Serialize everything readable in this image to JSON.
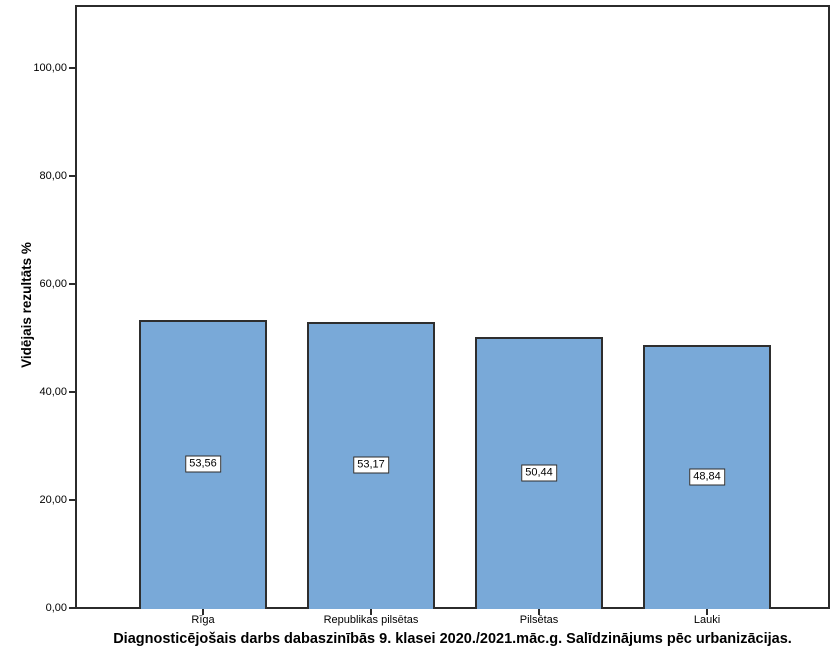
{
  "chart_data": {
    "type": "bar",
    "title": "Diagnosticējošais darbs dabaszinībās 9. klasei 2020./2021.māc.g. Salīdzinājums pēc urbanizācijas.",
    "ylabel": "Vidējais rezultāts %",
    "xlabel": "",
    "categories": [
      "Rīga",
      "Republikas pilsētas",
      "Pilsētas",
      "Lauki"
    ],
    "values": [
      53.56,
      53.17,
      50.44,
      48.84
    ],
    "value_labels": [
      "53,56",
      "53,17",
      "50,44",
      "48,84"
    ],
    "y_ticks": [
      {
        "value": 0,
        "label": "0,00"
      },
      {
        "value": 20,
        "label": "20,00"
      },
      {
        "value": 40,
        "label": "40,00"
      },
      {
        "value": 60,
        "label": "60,00"
      },
      {
        "value": 80,
        "label": "80,00"
      },
      {
        "value": 100,
        "label": "100,00"
      }
    ],
    "ylim": [
      0,
      111.8
    ],
    "grid": false,
    "legend": "none",
    "bar_color": "#79a9d8",
    "bar_border_color": "#2e2e2e",
    "frame_color": "#2b2b2b",
    "background_color": "#ffffff",
    "value_label_background": "#ffffff"
  }
}
